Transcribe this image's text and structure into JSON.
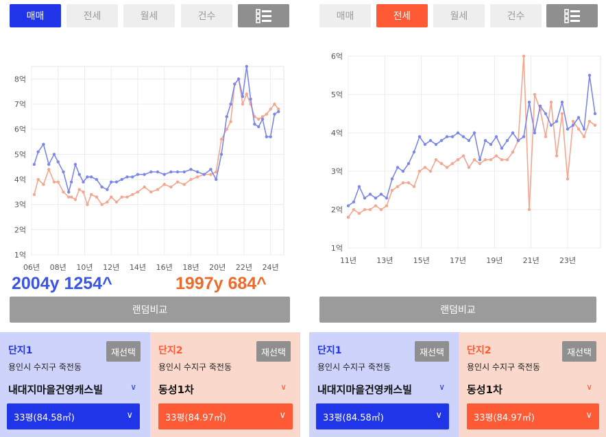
{
  "left": {
    "tabs": [
      "매매",
      "전세",
      "월세",
      "건수"
    ],
    "list_icon": "list-icon",
    "overlay_blue": "2004y 1254^",
    "overlay_orange": "1997y 684^",
    "compare_label": "랜덤비교",
    "card1": {
      "title": "단지1",
      "reselect": "재선택",
      "address": "용인시 수지구 죽전동",
      "complex": "내대지마을건영캐스빌",
      "size": "33평(84.58㎡)"
    },
    "card2": {
      "title": "단지2",
      "reselect": "재선택",
      "address": "용인시 수지구 죽전동",
      "complex": "동성1차",
      "size": "33평(84.97㎡)"
    }
  },
  "right": {
    "tabs": [
      "매매",
      "전세",
      "월세",
      "건수"
    ],
    "list_icon": "list-icon",
    "compare_label": "랜덤비교",
    "card1": {
      "title": "단지1",
      "reselect": "재선택",
      "address": "용인시 수지구 죽전동",
      "complex": "내대지마을건영캐스빌",
      "size": "33평(84.58㎡)"
    },
    "card2": {
      "title": "단지2",
      "reselect": "재선택",
      "address": "용인시 수지구 죽전동",
      "complex": "동성1차",
      "size": "33평(84.97㎡)"
    }
  },
  "colors": {
    "blue": "#2035e8",
    "orange": "#ff5a36",
    "series_blue": "#7b86ea",
    "series_orange": "#f6a58f"
  },
  "chart_data": [
    {
      "type": "line",
      "ylim": [
        1,
        8.5
      ],
      "yticks": [
        "1억",
        "2억",
        "3억",
        "4억",
        "5억",
        "6억",
        "7억",
        "8억"
      ],
      "xticks": [
        "06년",
        "08년",
        "10년",
        "12년",
        "14년",
        "16년",
        "18년",
        "20년",
        "22년",
        "24년"
      ],
      "xlim": [
        2006,
        2025
      ],
      "series": [
        {
          "x": [
            2006.2,
            2006.5,
            2006.9,
            2007.3,
            2007.7,
            2008.0,
            2008.4,
            2008.8,
            2009.0,
            2009.3,
            2009.6,
            2009.9,
            2010.2,
            2010.5,
            2010.9,
            2011.3,
            2011.7,
            2012.0,
            2012.4,
            2012.8,
            2013.2,
            2013.6,
            2014.0,
            2014.5,
            2015.0,
            2015.5,
            2016.0,
            2016.5,
            2017.0,
            2017.5,
            2018.0,
            2018.5,
            2019.0,
            2019.5,
            2019.9,
            2020.3,
            2020.7,
            2021.0,
            2021.3,
            2021.6,
            2021.9,
            2022.2,
            2022.5,
            2022.8,
            2023.1,
            2023.4,
            2023.7,
            2024.0,
            2024.3,
            2024.6
          ],
          "y": [
            4.6,
            5.1,
            5.4,
            4.6,
            5.0,
            4.7,
            4.3,
            3.5,
            3.9,
            4.6,
            4.2,
            3.9,
            4.1,
            4.1,
            4.0,
            3.7,
            3.6,
            3.9,
            3.9,
            4.0,
            4.1,
            4.1,
            4.2,
            4.2,
            4.3,
            4.3,
            4.2,
            4.3,
            4.3,
            4.3,
            4.4,
            4.3,
            4.2,
            4.4,
            4.0,
            5.0,
            6.5,
            7.0,
            7.8,
            8.0,
            7.3,
            8.5,
            7.2,
            6.2,
            6.1,
            6.4,
            5.7,
            5.7,
            6.6,
            6.7
          ]
        },
        {
          "x": [
            2006.2,
            2006.5,
            2006.9,
            2007.3,
            2007.7,
            2008.0,
            2008.4,
            2008.8,
            2009.0,
            2009.3,
            2009.6,
            2009.9,
            2010.2,
            2010.5,
            2010.9,
            2011.3,
            2011.7,
            2012.0,
            2012.4,
            2012.8,
            2013.2,
            2013.6,
            2014.0,
            2014.5,
            2015.0,
            2015.5,
            2016.0,
            2016.5,
            2017.0,
            2017.5,
            2018.0,
            2018.5,
            2019.0,
            2019.5,
            2019.9,
            2020.3,
            2020.7,
            2021.0,
            2021.3,
            2021.6,
            2021.9,
            2022.2,
            2022.5,
            2022.8,
            2023.1,
            2023.4,
            2023.7,
            2024.0,
            2024.3,
            2024.6
          ],
          "y": [
            3.4,
            4.0,
            3.8,
            4.4,
            3.9,
            3.9,
            3.5,
            3.3,
            3.3,
            3.2,
            3.6,
            3.5,
            3.0,
            3.4,
            3.3,
            3.0,
            3.1,
            3.3,
            3.1,
            3.3,
            3.3,
            3.4,
            3.5,
            3.7,
            3.5,
            3.6,
            3.8,
            3.7,
            3.9,
            3.8,
            4.0,
            4.1,
            4.2,
            4.2,
            4.3,
            5.6,
            6.0,
            6.3,
            7.8,
            8.0,
            7.0,
            7.4,
            7.0,
            6.5,
            6.4,
            6.5,
            6.6,
            6.8,
            7.0,
            6.8
          ]
        }
      ]
    },
    {
      "type": "line",
      "ylim": [
        1,
        6
      ],
      "yticks": [
        "1억",
        "2억",
        "3억",
        "4억",
        "5억",
        "6억"
      ],
      "xticks": [
        "11년",
        "13년",
        "15년",
        "17년",
        "19년",
        "21년",
        "23년"
      ],
      "xlim": [
        2011,
        2024.8
      ],
      "series": [
        {
          "x": [
            2011.0,
            2011.3,
            2011.6,
            2011.9,
            2012.2,
            2012.5,
            2012.8,
            2013.1,
            2013.4,
            2013.7,
            2014.0,
            2014.3,
            2014.6,
            2014.9,
            2015.2,
            2015.5,
            2015.8,
            2016.1,
            2016.4,
            2016.7,
            2017.0,
            2017.3,
            2017.6,
            2017.9,
            2018.2,
            2018.5,
            2018.8,
            2019.1,
            2019.4,
            2019.7,
            2020.0,
            2020.3,
            2020.6,
            2020.9,
            2021.2,
            2021.5,
            2021.8,
            2022.1,
            2022.4,
            2022.7,
            2023.0,
            2023.3,
            2023.6,
            2023.9,
            2024.2,
            2024.5
          ],
          "y": [
            2.1,
            2.2,
            2.6,
            2.3,
            2.4,
            2.3,
            2.4,
            2.3,
            2.8,
            3.1,
            3.0,
            3.2,
            3.5,
            3.9,
            3.7,
            3.8,
            3.7,
            3.8,
            3.9,
            3.9,
            4.0,
            3.9,
            3.8,
            4.0,
            3.3,
            3.8,
            3.7,
            3.9,
            3.6,
            3.8,
            4.0,
            3.8,
            3.9,
            4.8,
            4.0,
            4.7,
            4.5,
            4.2,
            4.3,
            4.8,
            4.1,
            4.2,
            4.4,
            4.1,
            5.5,
            4.5
          ]
        },
        {
          "x": [
            2011.0,
            2011.3,
            2011.6,
            2011.9,
            2012.2,
            2012.5,
            2012.8,
            2013.1,
            2013.4,
            2013.7,
            2014.0,
            2014.3,
            2014.6,
            2014.9,
            2015.2,
            2015.5,
            2015.8,
            2016.1,
            2016.4,
            2016.7,
            2017.0,
            2017.3,
            2017.6,
            2017.9,
            2018.2,
            2018.5,
            2018.8,
            2019.1,
            2019.4,
            2019.7,
            2020.0,
            2020.3,
            2020.6,
            2020.9,
            2021.2,
            2021.5,
            2021.8,
            2022.1,
            2022.4,
            2022.7,
            2023.0,
            2023.3,
            2023.6,
            2023.9,
            2024.2,
            2024.5
          ],
          "y": [
            1.8,
            2.0,
            1.9,
            2.0,
            2.0,
            2.1,
            2.0,
            2.1,
            2.5,
            2.6,
            2.7,
            2.7,
            2.6,
            3.0,
            3.1,
            3.0,
            3.3,
            3.2,
            3.1,
            3.2,
            3.3,
            3.4,
            3.1,
            3.3,
            3.2,
            3.3,
            3.3,
            3.4,
            3.3,
            3.3,
            3.5,
            3.8,
            6.0,
            2.0,
            5.0,
            4.6,
            3.9,
            4.8,
            3.4,
            4.5,
            2.8,
            4.3,
            4.1,
            3.9,
            4.3,
            4.2
          ]
        }
      ]
    }
  ]
}
